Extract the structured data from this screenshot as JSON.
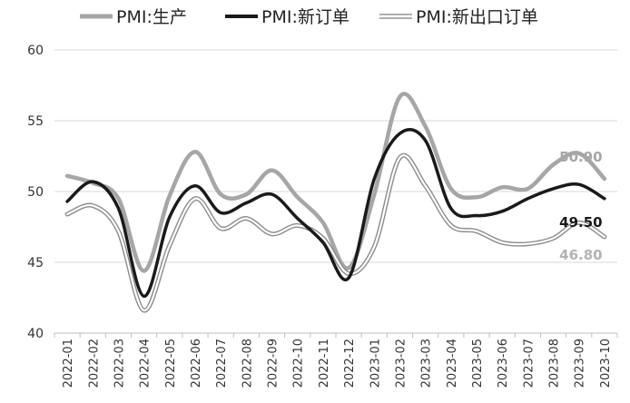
{
  "chart_data": {
    "type": "line",
    "title": "",
    "xlabel": "",
    "ylabel": "",
    "ylim": [
      40,
      60
    ],
    "yticks": [
      40,
      45,
      50,
      55,
      60
    ],
    "grid": "horizontal",
    "legend_position": "top",
    "categories": [
      "2022-01",
      "2022-02",
      "2022-03",
      "2022-04",
      "2022-05",
      "2022-06",
      "2022-07",
      "2022-08",
      "2022-09",
      "2022-10",
      "2022-11",
      "2022-12",
      "2023-01",
      "2023-02",
      "2023-03",
      "2023-04",
      "2023-05",
      "2023-06",
      "2023-07",
      "2023-08",
      "2023-09",
      "2023-10"
    ],
    "series": [
      {
        "name": "PMI:生产",
        "style": "gray-thick",
        "color": "#a6a6a6",
        "values": [
          51.1,
          50.6,
          49.5,
          44.4,
          49.7,
          52.8,
          49.8,
          49.8,
          51.5,
          49.6,
          47.8,
          44.6,
          49.8,
          56.7,
          54.6,
          50.2,
          49.6,
          50.3,
          50.2,
          51.9,
          52.7,
          50.9
        ],
        "end_label": "50.90"
      },
      {
        "name": "PMI:新订单",
        "style": "black-thick",
        "color": "#1a1a1a",
        "values": [
          49.3,
          50.7,
          48.8,
          42.6,
          48.2,
          50.4,
          48.5,
          49.2,
          49.8,
          48.1,
          46.4,
          43.9,
          50.9,
          54.1,
          53.6,
          48.8,
          48.3,
          48.6,
          49.5,
          50.2,
          50.5,
          49.5
        ],
        "end_label": "49.50"
      },
      {
        "name": "PMI:新出口订单",
        "style": "double-outline",
        "color": "#999999",
        "values": [
          48.4,
          49.0,
          47.2,
          41.6,
          46.2,
          49.5,
          47.4,
          48.1,
          47.0,
          47.6,
          46.7,
          44.2,
          46.1,
          52.4,
          50.4,
          47.6,
          47.2,
          46.4,
          46.3,
          46.7,
          47.8,
          46.8
        ],
        "end_label": "46.80"
      }
    ]
  }
}
